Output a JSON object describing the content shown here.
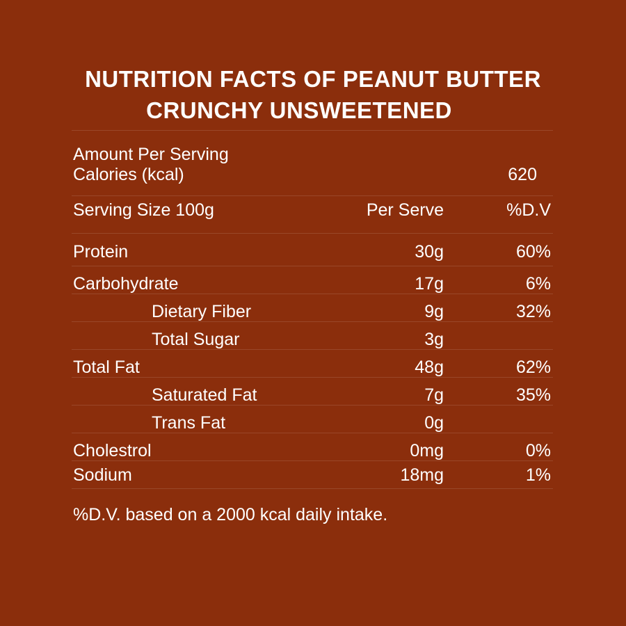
{
  "title_line1": "NUTRITION FACTS OF PEANUT BUTTER",
  "title_line2": "CRUNCHY UNSWEETENED",
  "amount_label": "Amount Per Serving",
  "calories_label": "Calories (kcal)",
  "calories_value": "620",
  "serving_size_label": "Serving Size 100g",
  "per_serve_header": "Per Serve",
  "dv_header": "%D.V",
  "nutrients": [
    {
      "name": "Protein",
      "per_serve": "30g",
      "dv": "60%",
      "indent": false
    },
    {
      "name": "Carbohydrate",
      "per_serve": "17g",
      "dv": "6%",
      "indent": false
    },
    {
      "name": "Dietary Fiber",
      "per_serve": "9g",
      "dv": "32%",
      "indent": true
    },
    {
      "name": "Total Sugar",
      "per_serve": "3g",
      "dv": "",
      "indent": true
    },
    {
      "name": "Total Fat",
      "per_serve": "48g",
      "dv": "62%",
      "indent": false
    },
    {
      "name": "Saturated Fat",
      "per_serve": "7g",
      "dv": "35%",
      "indent": true
    },
    {
      "name": "Trans Fat",
      "per_serve": "0g",
      "dv": "",
      "indent": true
    },
    {
      "name": "Cholestrol",
      "per_serve": "0mg",
      "dv": "0%",
      "indent": false
    },
    {
      "name": "Sodium",
      "per_serve": "18mg",
      "dv": "1%",
      "indent": false
    }
  ],
  "footnote": "%D.V. based on a 2000 kcal daily intake.",
  "colors": {
    "background": "#8b2e0c",
    "text": "#ffffff"
  }
}
